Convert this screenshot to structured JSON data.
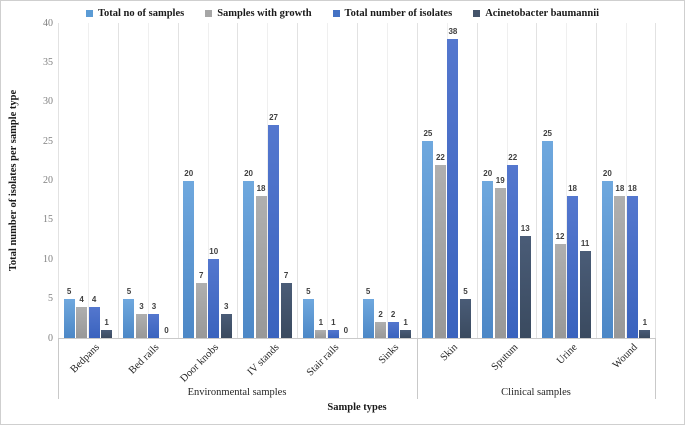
{
  "figure": {
    "y_ticks": [
      0,
      5,
      10,
      15,
      20,
      25,
      30,
      35,
      40
    ]
  },
  "chart_data": {
    "type": "bar",
    "title": "",
    "xlabel": "Sample types",
    "ylabel": "Total number of isolates per sample type",
    "ylim": [
      0,
      40
    ],
    "grid": "vertical-only",
    "legend_position": "top-center",
    "categories": [
      "Bedpans",
      "Bed rails",
      "Door knobs",
      "IV stands",
      "Stair rails",
      "Sinks",
      "Skin",
      "Sputum",
      "Urine",
      "Wound"
    ],
    "category_groups": [
      {
        "label": "Environmental samples",
        "span": 6
      },
      {
        "label": "Clinical samples",
        "span": 4
      }
    ],
    "series": [
      {
        "name": "Total no of samples",
        "color": "#5B9BD5",
        "gradient": [
          "#6FA8DE",
          "#4C87C6"
        ],
        "values": [
          5,
          5,
          20,
          20,
          5,
          5,
          25,
          20,
          25,
          20
        ]
      },
      {
        "name": "Samples with growth",
        "color": "#A6A6A6",
        "gradient": [
          "#AFAFAF",
          "#989898"
        ],
        "values": [
          4,
          3,
          7,
          18,
          1,
          2,
          22,
          19,
          12,
          18
        ]
      },
      {
        "name": "Total number of isolates",
        "color": "#4472C4",
        "gradient": [
          "#5477CE",
          "#3A63BE"
        ],
        "values": [
          4,
          3,
          10,
          27,
          1,
          2,
          38,
          22,
          18,
          18
        ]
      },
      {
        "name": "Acinetobacter baumannii",
        "color": "#44546A",
        "gradient": [
          "#4A5C77",
          "#3A4A5F"
        ],
        "values": [
          1,
          0,
          3,
          7,
          0,
          1,
          5,
          13,
          11,
          1
        ]
      }
    ]
  }
}
